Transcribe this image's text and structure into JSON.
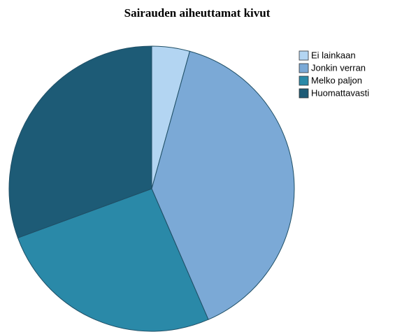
{
  "chart_data": {
    "type": "pie",
    "title": "Sairauden aiheuttamat kivut",
    "categories": [
      "Ei lainkaan",
      "Jonkin verran",
      "Melko paljon",
      "Huomattavasti"
    ],
    "values": [
      4.3,
      39.2,
      25.9,
      30.6
    ],
    "colors": [
      "#b3d5f2",
      "#7ba9d6",
      "#2a89a8",
      "#1d5b76"
    ],
    "legend": "right"
  }
}
